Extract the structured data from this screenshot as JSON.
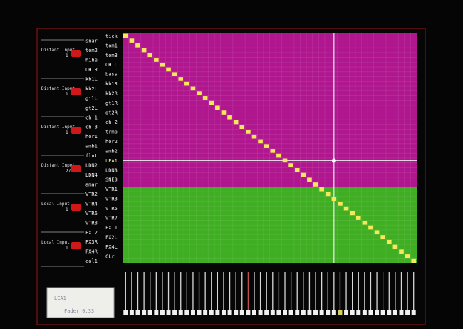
{
  "inputs": [
    {
      "label": "Distant Input",
      "number": "1"
    },
    {
      "label": "Distant Input",
      "number": "1"
    },
    {
      "label": "Distant Input",
      "number": "1"
    },
    {
      "label": "Distant Input",
      "number": "27"
    },
    {
      "label": "Local Input",
      "number": "1"
    },
    {
      "label": "Local Input",
      "number": "1"
    }
  ],
  "channels": [
    "tick",
    "snar",
    "tom1",
    "tom2",
    "tom3",
    "hihe",
    "CH L",
    "CH R",
    "bass",
    "kb1L",
    "kb1R",
    "kb2L",
    "kb2R",
    "gilL",
    "gt1R",
    "gt2L",
    "gt2R",
    "ch 1",
    "ch 2",
    "ch 3",
    "trmp",
    "hor1",
    "hor2",
    "amb1",
    "amb2",
    "flut",
    "LEA1",
    "LDN2",
    "LDN3",
    "LDN4",
    "SNE3",
    "amar",
    "VTR1",
    "VTR2",
    "VTR3",
    "VTR4",
    "VTR5",
    "VTR6",
    "VTR7",
    "VTR8",
    "FX 1",
    "FX 2",
    "FX2L",
    "FX3R",
    "FX4L",
    "FX4R",
    "CLr",
    "col1"
  ],
  "status": {
    "channel": "LEA1",
    "fader": "Fader 0.33"
  }
}
